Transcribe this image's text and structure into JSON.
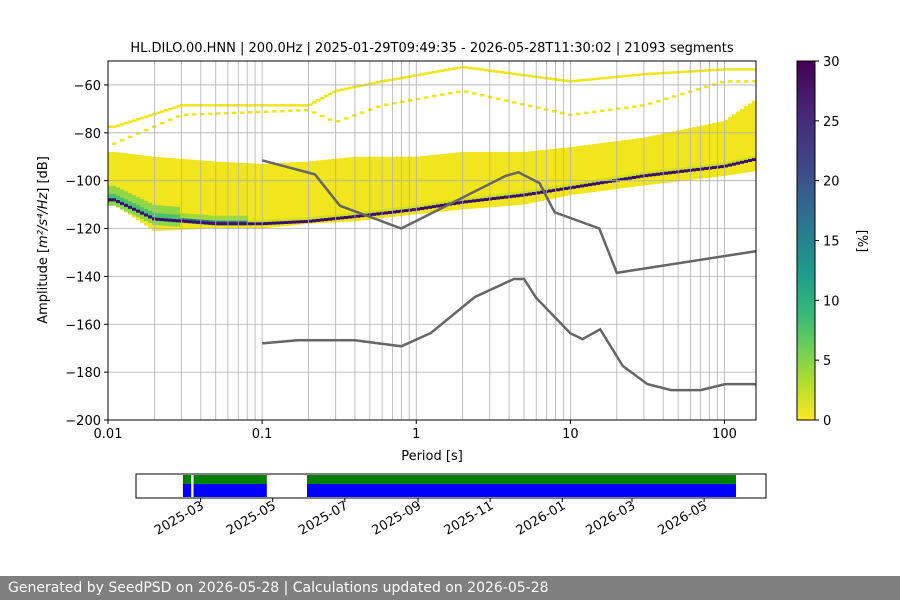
{
  "chart_data": {
    "type": "heatmap",
    "title": "HL.DILO.00.HNN | 200.0Hz | 2025-01-29T09:49:35 - 2026-05-28T11:30:02 | 21093 segments",
    "xlabel": "Period [s]",
    "ylabel_main": "Amplitude [",
    "ylabel_math": "m²/s⁴/Hz",
    "ylabel_end": "] [dB]",
    "x_scale": "log",
    "xlim": [
      0.01,
      160
    ],
    "ylim": [
      -200,
      -50
    ],
    "x_ticks": [
      {
        "value": 0.01,
        "label": "0.01"
      },
      {
        "value": 0.1,
        "label": "0.1"
      },
      {
        "value": 1,
        "label": "1"
      },
      {
        "value": 10,
        "label": "10"
      },
      {
        "value": 100,
        "label": "100"
      }
    ],
    "y_ticks": [
      {
        "value": -60,
        "label": "−60"
      },
      {
        "value": -80,
        "label": "−80"
      },
      {
        "value": -100,
        "label": "−100"
      },
      {
        "value": -120,
        "label": "−120"
      },
      {
        "value": -140,
        "label": "−140"
      },
      {
        "value": -160,
        "label": "−160"
      },
      {
        "value": -180,
        "label": "−180"
      },
      {
        "value": -200,
        "label": "−200"
      }
    ],
    "grid": true,
    "colorbar": {
      "label": "[%]",
      "range": [
        0,
        30
      ],
      "ticks": [
        {
          "value": 0,
          "label": "0"
        },
        {
          "value": 5,
          "label": "5"
        },
        {
          "value": 10,
          "label": "10"
        },
        {
          "value": 15,
          "label": "15"
        },
        {
          "value": 20,
          "label": "20"
        },
        {
          "value": 25,
          "label": "25"
        },
        {
          "value": 30,
          "label": "30"
        }
      ],
      "colormap": "viridis_r"
    },
    "density_band": [
      {
        "period": 0.011,
        "lower": -110,
        "upper": -88,
        "mode": -108
      },
      {
        "period": 0.02,
        "lower": -121,
        "upper": -90,
        "mode": -116
      },
      {
        "period": 0.05,
        "lower": -120,
        "upper": -92,
        "mode": -118
      },
      {
        "period": 0.1,
        "lower": -120,
        "upper": -93,
        "mode": -118
      },
      {
        "period": 0.2,
        "lower": -118,
        "upper": -92,
        "mode": -117
      },
      {
        "period": 0.4,
        "lower": -117,
        "upper": -90,
        "mode": -115
      },
      {
        "period": 1,
        "lower": -114,
        "upper": -90,
        "mode": -112
      },
      {
        "period": 2,
        "lower": -112,
        "upper": -88,
        "mode": -109
      },
      {
        "period": 5,
        "lower": -110,
        "upper": -88,
        "mode": -106
      },
      {
        "period": 10,
        "lower": -106,
        "upper": -86,
        "mode": -103
      },
      {
        "period": 30,
        "lower": -102,
        "upper": -82,
        "mode": -98
      },
      {
        "period": 100,
        "lower": -98,
        "upper": -75,
        "mode": -94
      },
      {
        "period": 160,
        "lower": -96,
        "upper": -66,
        "mode": -91
      }
    ],
    "sparse_outliers": [
      {
        "period": 0.011,
        "lower": -84,
        "upper": -77
      },
      {
        "period": 0.03,
        "lower": -72,
        "upper": -68
      },
      {
        "period": 0.2,
        "lower": -70,
        "upper": -68
      },
      {
        "period": 0.3,
        "lower": -75,
        "upper": -62
      },
      {
        "period": 0.6,
        "lower": -68,
        "upper": -58
      },
      {
        "period": 2,
        "lower": -62,
        "upper": -52
      },
      {
        "period": 10,
        "lower": -72,
        "upper": -58
      },
      {
        "period": 30,
        "lower": -68,
        "upper": -55
      },
      {
        "period": 100,
        "lower": -58,
        "upper": -53
      }
    ],
    "series": [
      {
        "model": "high",
        "color": "#666666",
        "points": [
          [
            0.1,
            -91.5
          ],
          [
            0.22,
            -97.4
          ],
          [
            0.32,
            -110.5
          ],
          [
            0.8,
            -120
          ],
          [
            3.8,
            -98
          ],
          [
            4.6,
            -96.5
          ],
          [
            6.3,
            -101
          ],
          [
            7.9,
            -113.2
          ],
          [
            15.4,
            -120
          ],
          [
            20,
            -138.5
          ],
          [
            354.8,
            -126
          ]
        ]
      },
      {
        "model": "low",
        "color": "#666666",
        "points": [
          [
            0.1,
            -168.0
          ],
          [
            0.17,
            -166.7
          ],
          [
            0.4,
            -166.7
          ],
          [
            0.8,
            -169.2
          ],
          [
            1.24,
            -163.7
          ],
          [
            2.4,
            -148.6
          ],
          [
            4.3,
            -141.1
          ],
          [
            5.0,
            -141.1
          ],
          [
            6.0,
            -149.0
          ],
          [
            10.0,
            -163.8
          ],
          [
            12.0,
            -166.2
          ],
          [
            15.6,
            -162.1
          ],
          [
            21.9,
            -177.5
          ],
          [
            31.6,
            -185.0
          ],
          [
            45.0,
            -187.5
          ],
          [
            70.0,
            -187.5
          ],
          [
            101.0,
            -185.0
          ],
          [
            154.0,
            -185.0
          ],
          [
            328.0,
            -187.5
          ]
        ]
      }
    ],
    "period_grid_lines": [
      0.01,
      0.02,
      0.03,
      0.04,
      0.05,
      0.06,
      0.07,
      0.08,
      0.09,
      0.1,
      0.2,
      0.3,
      0.4,
      0.5,
      0.6,
      0.7,
      0.8,
      0.9,
      1,
      2,
      3,
      4,
      5,
      6,
      7,
      8,
      9,
      10,
      20,
      30,
      40,
      50,
      60,
      70,
      80,
      90,
      100
    ],
    "availability": {
      "time_ticks": [
        "2025-03",
        "2025-05",
        "2025-07",
        "2025-09",
        "2025-11",
        "2026-01",
        "2026-03",
        "2026-05"
      ],
      "range": [
        "2025-01-29",
        "2026-05-28"
      ],
      "covered": [
        {
          "start": "2025-02-14",
          "end": "2025-02-21"
        },
        {
          "start": "2025-02-23",
          "end": "2025-04-26"
        },
        {
          "start": "2025-05-30",
          "end": "2026-05-28"
        }
      ],
      "green_color": "#008000",
      "blue_color": "#0000ff"
    }
  },
  "footer": {
    "text": "Generated by SeedPSD on 2026-05-28 | Calculations updated on 2026-05-28"
  }
}
